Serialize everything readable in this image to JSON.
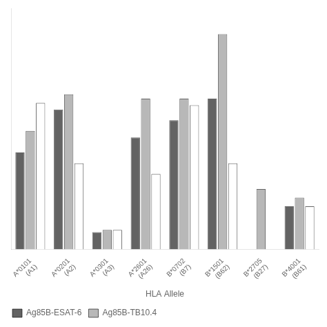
{
  "chart_data": {
    "type": "bar",
    "categories": [
      "A*0101\n(A1)",
      "A*0201\n(A2)",
      "A*0301\n(A3)",
      "A*2601\n(A26)",
      "B*0702\n(B7)",
      "B*1501\n(B62)",
      "B*2705\n(B27)",
      "B*4001\n(B61)"
    ],
    "series": [
      {
        "name": "Ag85B-ESAT-6",
        "color": "#636363",
        "values": [
          45,
          65,
          8,
          52,
          60,
          70,
          0,
          20
        ]
      },
      {
        "name": "Ag85B-TB10.4",
        "color": "#b8b8b8",
        "values": [
          55,
          72,
          9,
          70,
          70,
          100,
          28,
          24
        ]
      },
      {
        "color": "#ffffff",
        "values": [
          68,
          40,
          9,
          35,
          67,
          40,
          0,
          20
        ]
      }
    ],
    "xlabel": "HLA Allele",
    "ylim": [
      0,
      112
    ],
    "grid": false,
    "legend": "bottom",
    "tick_labels": "x"
  }
}
